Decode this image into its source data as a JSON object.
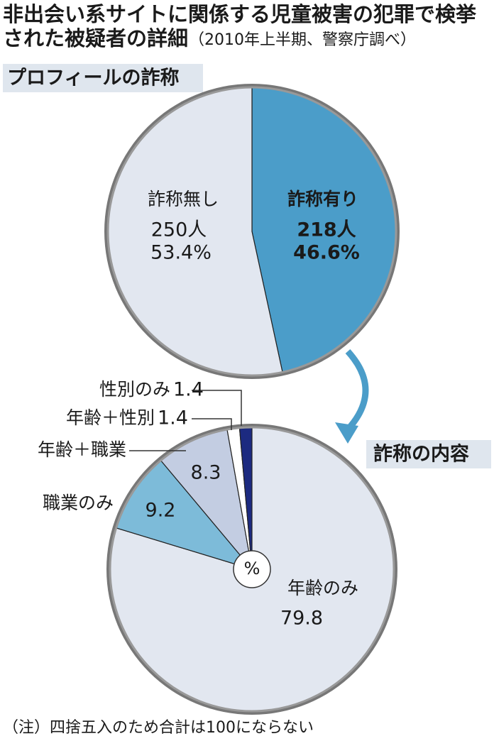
{
  "title": [
    "非出会い系サイトに関係する児童被害の犯罪で検挙",
    "された被疑者の詳細"
  ],
  "subtitle": "（2010年上半期、警察庁調べ）",
  "note": "（注）四捨五入のため合計は100にならない",
  "chart_data": [
    {
      "type": "pie",
      "title": "プロフィールの詐称",
      "categories": [
        "詐称無し",
        "詐称有り"
      ],
      "values": [
        53.4,
        46.6
      ],
      "value_labels": [
        "53.4%",
        "46.6%"
      ],
      "counts": [
        250,
        218
      ],
      "count_labels": [
        "250人",
        "218人"
      ],
      "colors": [
        "#e2e7f0",
        "#4b9dc9"
      ]
    },
    {
      "type": "pie",
      "title": "詐称の内容",
      "center_label": "%",
      "categories": [
        "性別のみ",
        "年齢＋性別",
        "年齢＋職業",
        "職業のみ",
        "年齢のみ"
      ],
      "values": [
        1.4,
        1.4,
        8.3,
        9.2,
        79.8
      ],
      "colors": [
        "#1c2a80",
        "#ffffff",
        "#c3cde2",
        "#7dbbd9",
        "#e2e7f0"
      ]
    }
  ]
}
